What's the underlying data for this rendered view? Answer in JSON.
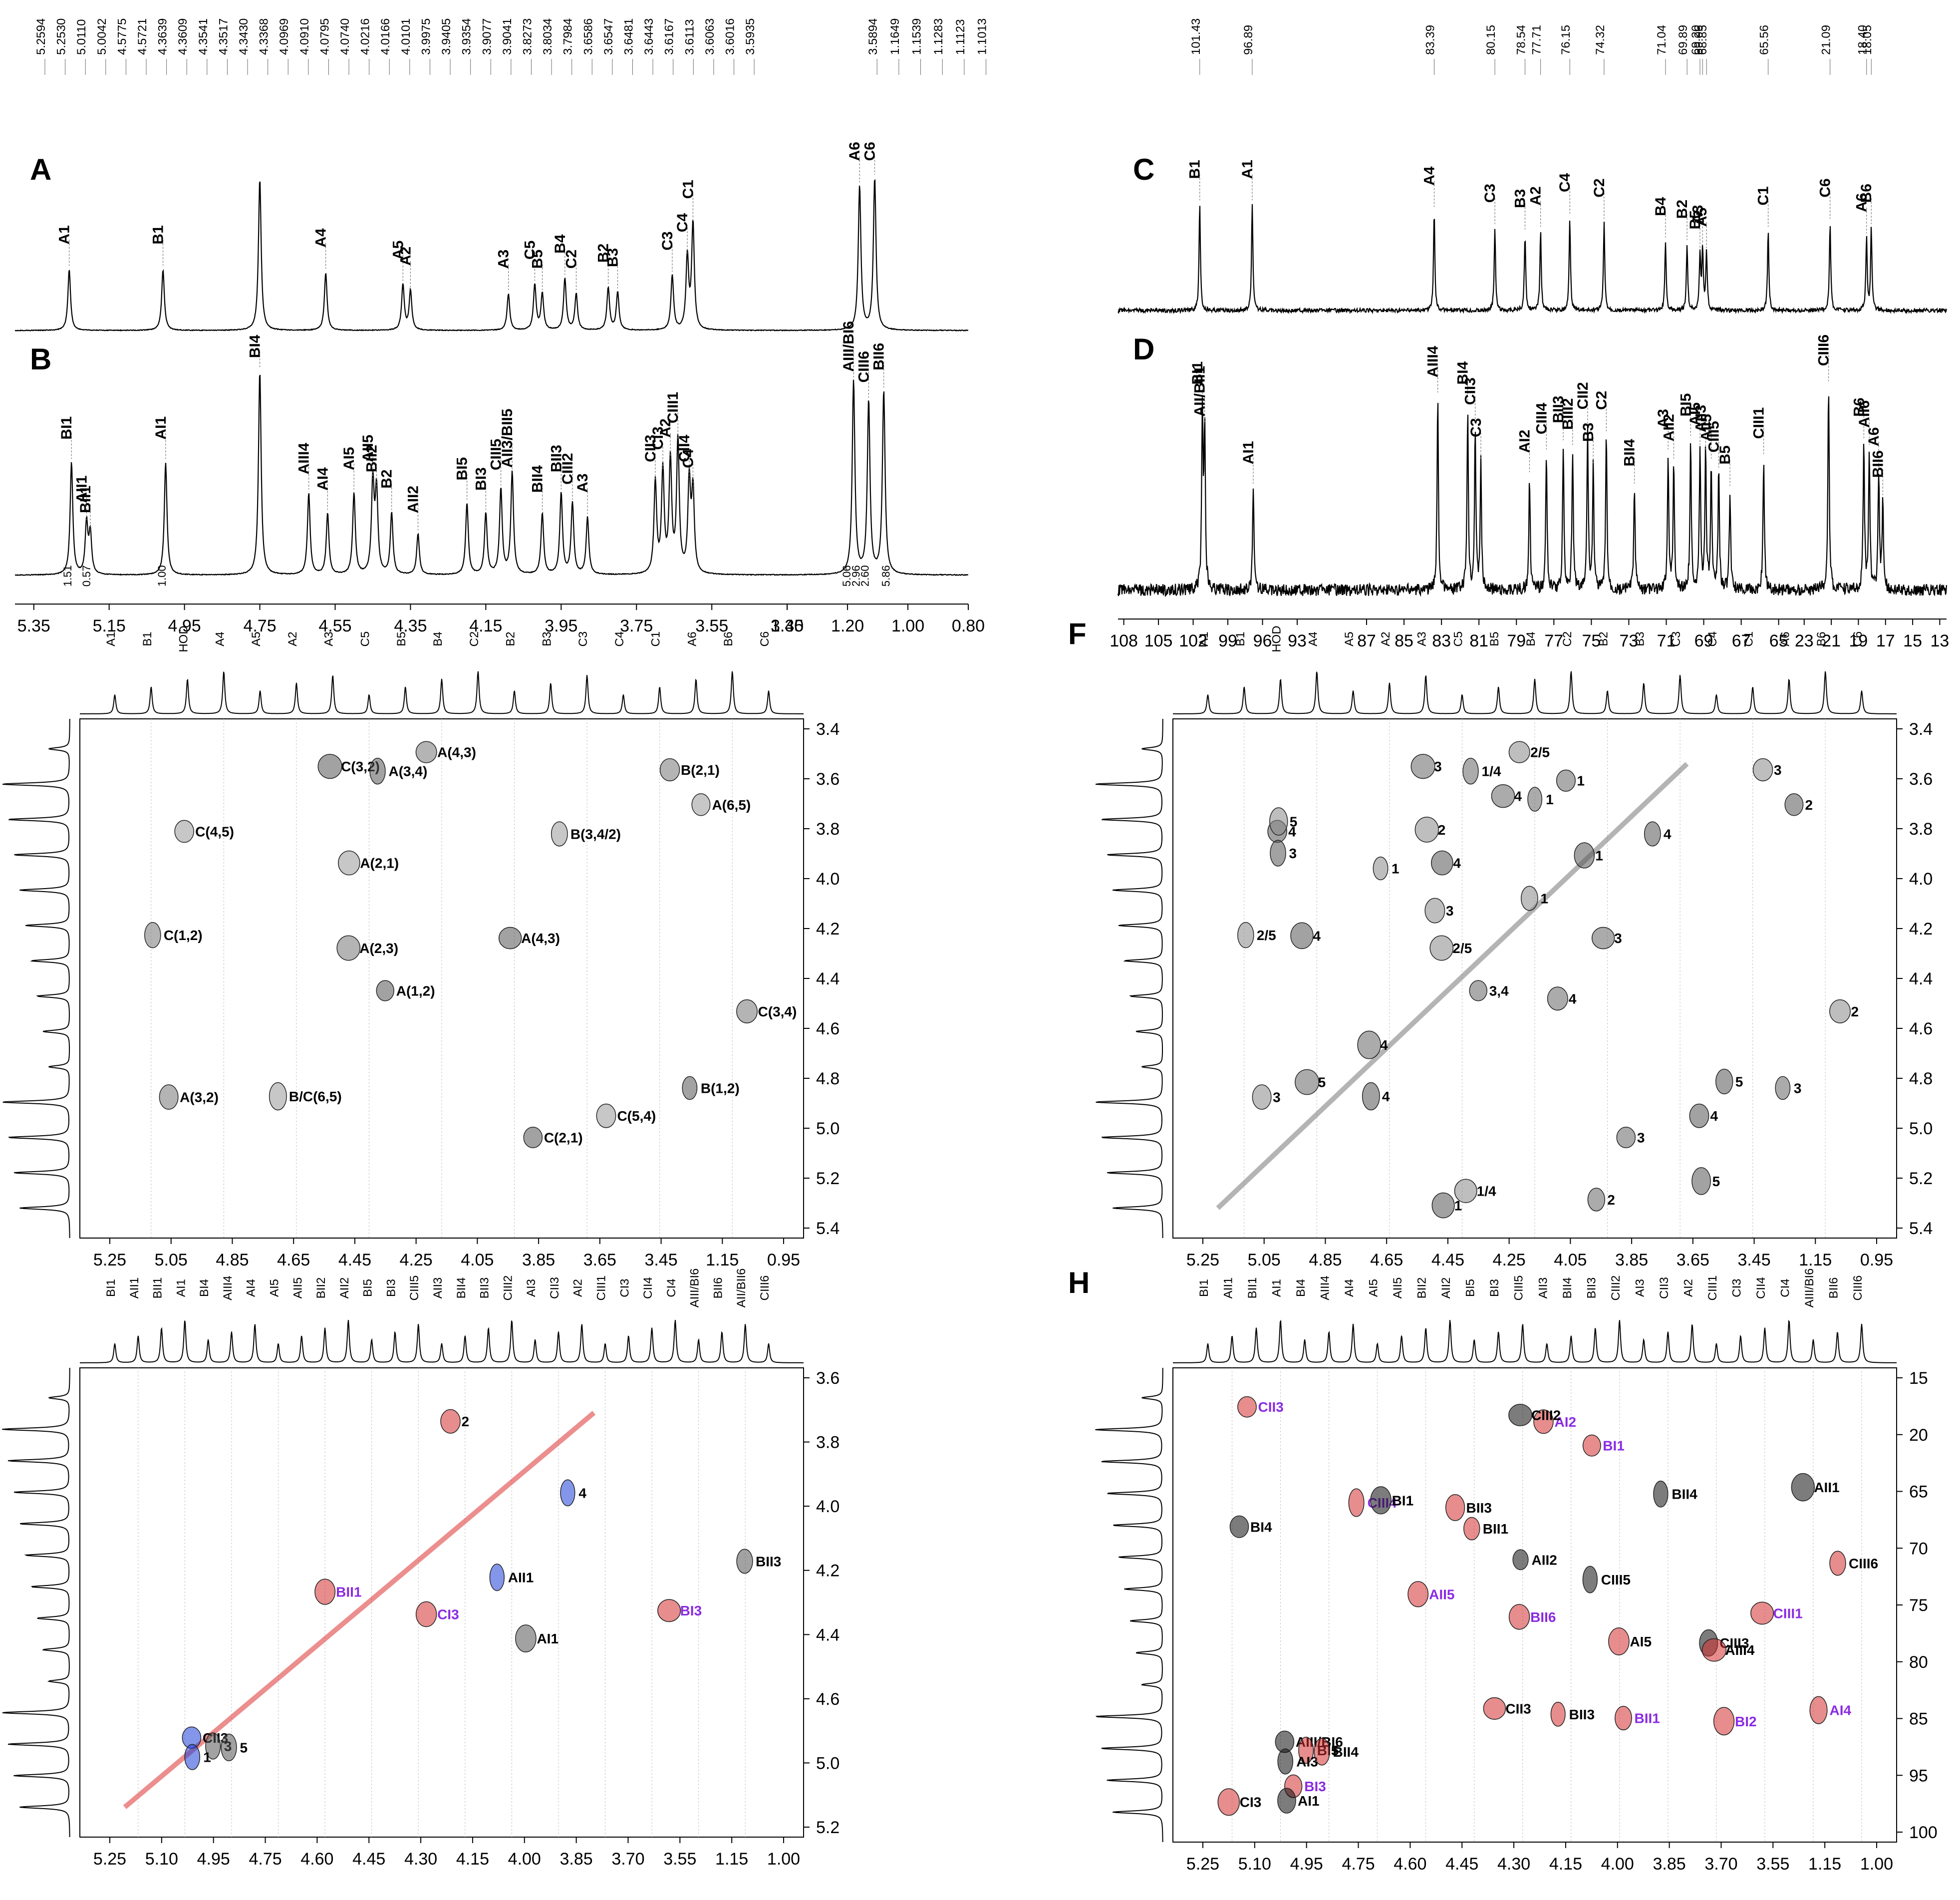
{
  "figure": {
    "title": "NMR spectra panels A-H"
  },
  "chart_data": [
    {
      "id": "A",
      "type": "line",
      "letter": "A",
      "title": "1H NMR spectrum",
      "xlim": [
        0.8,
        5.4
      ],
      "axis_break": [
        1.4,
        3.35
      ],
      "peak_list": [
        "5.2594",
        "5.2530",
        "5.0110",
        "5.0042",
        "4.5775",
        "4.5721",
        "4.3639",
        "4.3609",
        "4.3541",
        "4.3517",
        "4.3430",
        "4.3368",
        "4.0969",
        "4.0910",
        "4.0795",
        "4.0740",
        "4.0216",
        "4.0166",
        "4.0101",
        "3.9975",
        "3.9405",
        "3.9354",
        "3.9077",
        "3.9041",
        "3.8273",
        "3.8034",
        "3.7984",
        "3.6586",
        "3.6547",
        "3.6481",
        "3.6443",
        "3.6167",
        "3.6113",
        "3.6063",
        "3.6016",
        "3.5935",
        "3.5894",
        "1.1649",
        "1.1539",
        "1.1283",
        "1.1123",
        "1.1013"
      ],
      "peaks": [
        {
          "label": "A1",
          "x": 5.256,
          "h": 0.4
        },
        {
          "label": "B1",
          "x": 5.007,
          "h": 0.4
        },
        {
          "label": "A4",
          "x": 4.575,
          "h": 0.38
        },
        {
          "label": "A5",
          "x": 4.37,
          "h": 0.3
        },
        {
          "label": "A2",
          "x": 4.35,
          "h": 0.26
        },
        {
          "label": "HOD",
          "x": 4.75,
          "h": 1.0
        },
        {
          "label": "A3",
          "x": 4.09,
          "h": 0.24
        },
        {
          "label": "C5",
          "x": 4.02,
          "h": 0.3
        },
        {
          "label": "B5",
          "x": 4.0,
          "h": 0.24
        },
        {
          "label": "B4",
          "x": 3.94,
          "h": 0.34
        },
        {
          "label": "C2",
          "x": 3.91,
          "h": 0.24
        },
        {
          "label": "B2",
          "x": 3.825,
          "h": 0.28
        },
        {
          "label": "B3",
          "x": 3.8,
          "h": 0.25
        },
        {
          "label": "C3",
          "x": 3.655,
          "h": 0.36
        },
        {
          "label": "C4",
          "x": 3.615,
          "h": 0.48
        },
        {
          "label": "C1",
          "x": 3.6,
          "h": 0.7
        },
        {
          "label": "A6",
          "x": 1.16,
          "h": 0.95
        },
        {
          "label": "C6",
          "x": 1.11,
          "h": 1.0
        }
      ]
    },
    {
      "id": "B",
      "type": "line",
      "letter": "B",
      "title": "1H NMR spectrum",
      "xlim": [
        0.8,
        5.4
      ],
      "axis_break": [
        1.4,
        3.35
      ],
      "xticks": [
        "5.35",
        "5.15",
        "4.95",
        "4.75",
        "4.55",
        "4.35",
        "4.15",
        "3.95",
        "3.75",
        "3.55",
        "3.35",
        "1.40",
        "1.20",
        "1.00",
        "0.80"
      ],
      "integrals": [
        {
          "x": 5.25,
          "v": "1.51"
        },
        {
          "x": 5.2,
          "v": "0.57"
        },
        {
          "x": 5.0,
          "v": "1.00"
        },
        {
          "x": 1.19,
          "v": "5.06"
        },
        {
          "x": 1.16,
          "v": "2.96"
        },
        {
          "x": 1.13,
          "v": "2.60"
        },
        {
          "x": 1.06,
          "v": "5.86"
        }
      ],
      "peaks": [
        {
          "label": "BI1",
          "x": 5.25,
          "h": 0.55
        },
        {
          "label": "AII1",
          "x": 5.21,
          "h": 0.25
        },
        {
          "label": "BII1",
          "x": 5.2,
          "h": 0.2
        },
        {
          "label": "AI1",
          "x": 5.0,
          "h": 0.55
        },
        {
          "label": "BI4",
          "x": 4.75,
          "h": 1.0
        },
        {
          "label": "AIII4",
          "x": 4.62,
          "h": 0.4
        },
        {
          "label": "AI4",
          "x": 4.57,
          "h": 0.3
        },
        {
          "label": "AI5",
          "x": 4.5,
          "h": 0.4
        },
        {
          "label": "AII5",
          "x": 4.45,
          "h": 0.45
        },
        {
          "label": "BII2",
          "x": 4.44,
          "h": 0.4
        },
        {
          "label": "B2",
          "x": 4.4,
          "h": 0.3
        },
        {
          "label": "AII2",
          "x": 4.33,
          "h": 0.2
        },
        {
          "label": "BI5",
          "x": 4.2,
          "h": 0.35
        },
        {
          "label": "BI3",
          "x": 4.15,
          "h": 0.3
        },
        {
          "label": "CIII5",
          "x": 4.11,
          "h": 0.42
        },
        {
          "label": "AII3/BII5",
          "x": 4.08,
          "h": 0.5
        },
        {
          "label": "BII4",
          "x": 4.0,
          "h": 0.3
        },
        {
          "label": "BII3",
          "x": 3.95,
          "h": 0.4
        },
        {
          "label": "CIII2",
          "x": 3.92,
          "h": 0.35
        },
        {
          "label": "A3",
          "x": 3.88,
          "h": 0.28
        },
        {
          "label": "CII3",
          "x": 3.7,
          "h": 0.45
        },
        {
          "label": "CI3",
          "x": 3.68,
          "h": 0.5
        },
        {
          "label": "A2",
          "x": 3.66,
          "h": 0.55
        },
        {
          "label": "CIII1",
          "x": 3.64,
          "h": 0.65
        },
        {
          "label": "CII4",
          "x": 3.61,
          "h": 0.45
        },
        {
          "label": "C4",
          "x": 3.6,
          "h": 0.4
        },
        {
          "label": "AIII/BI6",
          "x": 1.18,
          "h": 0.95
        },
        {
          "label": "CIII6",
          "x": 1.13,
          "h": 0.85
        },
        {
          "label": "BII6",
          "x": 1.08,
          "h": 0.9
        }
      ]
    },
    {
      "id": "C",
      "type": "line",
      "letter": "C",
      "title": "13C NMR spectrum",
      "xlim": [
        12.5,
        109
      ],
      "peak_list": [
        "101.43",
        "96.89",
        "83.39",
        "80.15",
        "78.54",
        "77.71",
        "76.15",
        "74.32",
        "71.04",
        "69.89",
        "69.20",
        "69.06",
        "68.85",
        "65.56",
        "21.09",
        "18.40",
        "18.05"
      ],
      "peaks": [
        {
          "label": "B1",
          "x": 101.43,
          "h": 0.8
        },
        {
          "label": "A1",
          "x": 96.89,
          "h": 0.8
        },
        {
          "label": "A4",
          "x": 83.39,
          "h": 0.75
        },
        {
          "label": "C3",
          "x": 80.15,
          "h": 0.62
        },
        {
          "label": "B3",
          "x": 78.54,
          "h": 0.58
        },
        {
          "label": "A2",
          "x": 77.71,
          "h": 0.6
        },
        {
          "label": "C4",
          "x": 76.15,
          "h": 0.7
        },
        {
          "label": "C2",
          "x": 74.32,
          "h": 0.66
        },
        {
          "label": "B4",
          "x": 71.04,
          "h": 0.52
        },
        {
          "label": "B2",
          "x": 69.89,
          "h": 0.5
        },
        {
          "label": "B5",
          "x": 69.2,
          "h": 0.42
        },
        {
          "label": "A3",
          "x": 69.06,
          "h": 0.46
        },
        {
          "label": "A5",
          "x": 68.85,
          "h": 0.44
        },
        {
          "label": "C1",
          "x": 65.56,
          "h": 0.6
        },
        {
          "label": "C6",
          "x": 21.09,
          "h": 0.66
        },
        {
          "label": "A6",
          "x": 18.4,
          "h": 0.55
        },
        {
          "label": "B6",
          "x": 18.05,
          "h": 0.62
        }
      ]
    },
    {
      "id": "D",
      "type": "line",
      "letter": "D",
      "title": "13C NMR spectrum",
      "xlim": [
        12.5,
        109
      ],
      "xticks": [
        "108",
        "105",
        "102",
        "99",
        "96",
        "93",
        "87",
        "85",
        "83",
        "81",
        "79",
        "77",
        "75",
        "73",
        "71",
        "69",
        "67",
        "65",
        "23",
        "21",
        "19",
        "17",
        "15",
        "13"
      ],
      "peaks": [
        {
          "label": "BI1",
          "x": 101.2,
          "h": 0.8
        },
        {
          "label": "AII/BII1",
          "x": 101.0,
          "h": 0.72
        },
        {
          "label": "AI1",
          "x": 96.8,
          "h": 0.45
        },
        {
          "label": "AIII4",
          "x": 83.2,
          "h": 0.85
        },
        {
          "label": "BI4",
          "x": 81.6,
          "h": 0.8
        },
        {
          "label": "CII3",
          "x": 81.2,
          "h": 0.72
        },
        {
          "label": "C3",
          "x": 80.9,
          "h": 0.56
        },
        {
          "label": "AI2",
          "x": 78.3,
          "h": 0.5
        },
        {
          "label": "CIII4",
          "x": 77.4,
          "h": 0.6
        },
        {
          "label": "BII3",
          "x": 76.5,
          "h": 0.64
        },
        {
          "label": "BIII2",
          "x": 76.0,
          "h": 0.62
        },
        {
          "label": "CII2",
          "x": 75.2,
          "h": 0.7
        },
        {
          "label": "B3",
          "x": 74.9,
          "h": 0.54
        },
        {
          "label": "C2",
          "x": 74.2,
          "h": 0.68
        },
        {
          "label": "BII4",
          "x": 72.7,
          "h": 0.45
        },
        {
          "label": "A3",
          "x": 70.9,
          "h": 0.6
        },
        {
          "label": "AII2",
          "x": 70.6,
          "h": 0.56
        },
        {
          "label": "BI5",
          "x": 69.7,
          "h": 0.66
        },
        {
          "label": "AI5",
          "x": 69.2,
          "h": 0.62
        },
        {
          "label": "AII3",
          "x": 68.9,
          "h": 0.6
        },
        {
          "label": "AII5",
          "x": 68.6,
          "h": 0.56
        },
        {
          "label": "CIII5",
          "x": 68.2,
          "h": 0.52
        },
        {
          "label": "B5",
          "x": 67.6,
          "h": 0.44
        },
        {
          "label": "CIII1",
          "x": 65.8,
          "h": 0.58
        },
        {
          "label": "CIII6",
          "x": 21.2,
          "h": 0.9
        },
        {
          "label": "B6",
          "x": 18.6,
          "h": 0.65
        },
        {
          "label": "AII6",
          "x": 18.2,
          "h": 0.62
        },
        {
          "label": "A6",
          "x": 17.5,
          "h": 0.52
        },
        {
          "label": "BII6",
          "x": 17.2,
          "h": 0.4
        }
      ]
    },
    {
      "id": "E",
      "type": "heatmap",
      "letter": "E",
      "title": "2D 1H-1H correlation",
      "xticks": [
        "5.25",
        "5.05",
        "4.85",
        "4.65",
        "4.45",
        "4.25",
        "4.05",
        "3.85",
        "3.65",
        "3.45",
        "1.15",
        "0.95"
      ],
      "yticks": [
        "3.4",
        "3.6",
        "3.8",
        "4.0",
        "4.2",
        "4.4",
        "4.6",
        "4.8",
        "5.0",
        "5.2",
        "5.4"
      ],
      "top_labels": [
        "A1",
        "B1",
        "HOD",
        "A4",
        "A5",
        "A2",
        "A3",
        "C5",
        "B5",
        "B4",
        "C2",
        "B2",
        "B3",
        "C3",
        "C4",
        "C1",
        "A6",
        "B6",
        "C6"
      ],
      "cross_labels": [
        "C(2,1)",
        "C(3,4)",
        "C(5,4)",
        "B(1,2)",
        "A(4,3)",
        "B(3,4/2)",
        "C(3,2)",
        "C(1,2)",
        "B/C(6,5)",
        "A(4,3)",
        "A(2,3)",
        "C(4,5)",
        "A(1,2)",
        "A(3,2)",
        "A(6,5)",
        "A(3,4)",
        "B(2,1)",
        "A(2,1)"
      ]
    },
    {
      "id": "F",
      "type": "heatmap",
      "letter": "F",
      "title": "2D 1H-1H TOCSY",
      "xticks": [
        "5.25",
        "5.05",
        "4.85",
        "4.65",
        "4.45",
        "4.25",
        "4.05",
        "3.85",
        "3.65",
        "3.45",
        "1.15",
        "0.95"
      ],
      "yticks": [
        "3.4",
        "3.6",
        "3.8",
        "4.0",
        "4.2",
        "4.4",
        "4.6",
        "4.8",
        "5.0",
        "5.2",
        "5.4"
      ],
      "top_labels": [
        "A1",
        "B1",
        "HOD",
        "A4",
        "A5",
        "A2",
        "A3",
        "C5",
        "B5",
        "B4",
        "C2",
        "B2",
        "B3",
        "C3",
        "C4",
        "C1",
        "A6",
        "B6",
        "C6"
      ],
      "cross_labels": [
        "3",
        "2",
        "4",
        "3",
        "2/5",
        "4",
        "3",
        "2/5",
        "4",
        "3",
        "2/5",
        "4",
        "3,4",
        "3",
        "2",
        "1/4",
        "3",
        "4",
        "4",
        "1/4",
        "3",
        "2",
        "2",
        "5",
        "5",
        "3",
        "4",
        "4",
        "5",
        "5",
        "4",
        "1",
        "1",
        "1",
        "1",
        "1",
        "1"
      ]
    },
    {
      "id": "G",
      "type": "heatmap",
      "letter": "G",
      "title": "2D 1H-1H overlay",
      "xticks": [
        "5.25",
        "5.10",
        "4.95",
        "4.75",
        "4.60",
        "4.45",
        "4.30",
        "4.15",
        "4.00",
        "3.85",
        "3.70",
        "3.55",
        "1.15",
        "1.00"
      ],
      "yticks": [
        "3.6",
        "3.8",
        "4.0",
        "4.2",
        "4.4",
        "4.6",
        "5.0",
        "5.2"
      ],
      "top_labels": [
        "BI1",
        "AII1",
        "BII1",
        "AI1",
        "BI4",
        "AIII4",
        "AI4",
        "AI5",
        "AII5",
        "BII2",
        "AII2",
        "BI5",
        "BI3",
        "CIII5",
        "AII3",
        "BII4",
        "BII3",
        "CIII2",
        "AI3",
        "CII3",
        "AI2",
        "CIII1",
        "CI3",
        "CII4",
        "CI4",
        "AIII/BI6",
        "BII6",
        "AII/BII6",
        "CIII6"
      ],
      "cross_labels": [
        "CI3",
        "CII3",
        "BII3",
        "BI3",
        "AII1",
        "AI1",
        "BII1",
        "4",
        "3",
        "2",
        "1",
        "5"
      ]
    },
    {
      "id": "H",
      "type": "heatmap",
      "letter": "H",
      "title": "2D 1H-13C HSQC/HMBC",
      "xticks": [
        "5.25",
        "5.10",
        "4.95",
        "4.75",
        "4.60",
        "4.45",
        "4.30",
        "4.15",
        "4.00",
        "3.85",
        "3.70",
        "3.55",
        "1.15",
        "1.00"
      ],
      "yticks": [
        "15",
        "20",
        "65",
        "70",
        "75",
        "80",
        "85",
        "95",
        "100"
      ],
      "top_labels": [
        "BI1",
        "AII1",
        "BII1",
        "AI1",
        "BI4",
        "AIII4",
        "AI4",
        "AI5",
        "AII5",
        "BII2",
        "AII2",
        "BI5",
        "BI3",
        "CIII5",
        "AII3",
        "BII4",
        "BII3",
        "CIII2",
        "AI3",
        "CII3",
        "AI2",
        "CIII1",
        "CI3",
        "CII4",
        "CI4",
        "AIII/BI6",
        "BII6",
        "CIII6"
      ],
      "cross_labels": [
        "BII6",
        "AIII/BI6",
        "CIII6",
        "CIII1",
        "CIII5",
        "AI5",
        "AII5",
        "BII4",
        "BI5",
        "AI2",
        "AI3",
        "BII4",
        "BI3",
        "CIII2",
        "BII3",
        "BI2",
        "AII2",
        "CII3",
        "CIII4",
        "CIII3",
        "CI3",
        "CII3",
        "BI4",
        "AIII4",
        "AI4",
        "AII1",
        "BII1",
        "BI1",
        "AI1",
        "BII3",
        "BII1",
        "BI1"
      ]
    }
  ]
}
